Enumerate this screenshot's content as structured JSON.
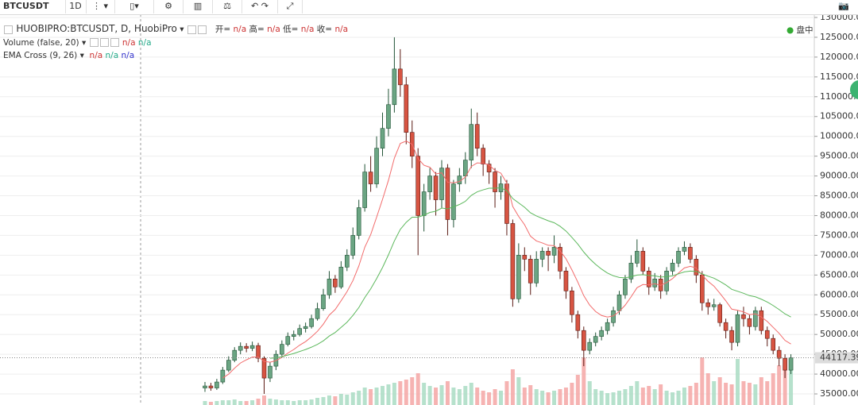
{
  "chart_data": {
    "type": "candlestick",
    "symbol": "BTCUSDT",
    "interval": "1D",
    "title": "HUOBIPRO:BTCUSDT, D, HuobiPro",
    "ohlc_labels": [
      "开=",
      "高=",
      "低=",
      "收="
    ],
    "na": "n/a",
    "volume_title": "Volume (false, 20)",
    "ema_title": "EMA Cross (9, 26)",
    "market_status": "盘中",
    "up_color": "#6ba583",
    "down_color": "#d75442",
    "volume_up_color": "#a9dcc3",
    "volume_down_color": "#f5a6a4",
    "ylim": [
      32200,
      130800
    ],
    "yticks": [
      {
        "value": 35000,
        "label": "35000.00"
      },
      {
        "value": 40000,
        "label": "40000.00"
      },
      {
        "value": 45000,
        "label": "45000.00"
      },
      {
        "value": 50000,
        "label": "50000.00"
      },
      {
        "value": 55000,
        "label": "55000.00"
      },
      {
        "value": 60000,
        "label": "60000.00"
      },
      {
        "value": 65000,
        "label": "65000.00"
      },
      {
        "value": 70000,
        "label": "70000.00"
      },
      {
        "value": 75000,
        "label": "75000.00"
      },
      {
        "value": 80000,
        "label": "80000.00"
      },
      {
        "value": 85000,
        "label": "85000.00"
      },
      {
        "value": 90000,
        "label": "90000.00"
      },
      {
        "value": 95000,
        "label": "95000.00"
      },
      {
        "value": 100000,
        "label": "100000.00"
      },
      {
        "value": 105000,
        "label": "105000.00"
      },
      {
        "value": 110000,
        "label": "110000.00"
      },
      {
        "value": 115000,
        "label": "115000.00"
      },
      {
        "value": 120000,
        "label": "120000.00"
      },
      {
        "value": 125000,
        "label": "125000.00"
      },
      {
        "value": 130000,
        "label": "130000.00"
      }
    ],
    "grid": true,
    "last_price": 44117.39,
    "open": [
      36500,
      37000,
      36500,
      38000,
      41000,
      43500,
      46000,
      47000,
      46500,
      47200,
      44000,
      39000,
      42000,
      45000,
      47500,
      49500,
      50000,
      51500,
      52000,
      54000,
      56500,
      60000,
      64000,
      62000,
      67000,
      70000,
      75000,
      82000,
      91000,
      88000,
      97000,
      102000,
      108000,
      117000,
      113000,
      101000,
      95000,
      80000,
      86000,
      90000,
      84000,
      92000,
      79000,
      88000,
      90000,
      94000,
      103000,
      97000,
      93000,
      91000,
      86000,
      88000,
      78000,
      59000,
      70000,
      69000,
      63000,
      69000,
      71000,
      70000,
      72000,
      66000,
      61000,
      55000,
      51000,
      46000,
      48000,
      49500,
      51000,
      53000,
      56000,
      60000,
      64000,
      68000,
      71000,
      66000,
      62000,
      64000,
      61000,
      66000,
      68000,
      71000,
      72000,
      69000,
      65000,
      58000,
      57000,
      57500,
      53000,
      51000,
      48000,
      55000,
      54000,
      52000,
      56000,
      51000,
      49000,
      46000,
      44000,
      41000
    ],
    "high": [
      38000,
      37800,
      38800,
      41800,
      44500,
      46800,
      48000,
      47800,
      48200,
      47900,
      44500,
      43000,
      46000,
      48500,
      50500,
      51000,
      52500,
      53000,
      55000,
      58000,
      61500,
      66000,
      65000,
      68500,
      71500,
      77000,
      84000,
      93000,
      95000,
      100000,
      106000,
      112000,
      125000,
      122000,
      115000,
      104000,
      97000,
      88000,
      92000,
      91000,
      94000,
      93000,
      89000,
      92000,
      96000,
      107000,
      106000,
      98000,
      94000,
      92000,
      90000,
      89000,
      79000,
      73000,
      72000,
      70000,
      71000,
      72000,
      72000,
      75000,
      73000,
      67000,
      62000,
      56000,
      52000,
      49000,
      50500,
      52000,
      54000,
      57000,
      61000,
      65000,
      70000,
      74000,
      72000,
      67000,
      65500,
      65000,
      67000,
      69000,
      72000,
      73500,
      73000,
      70000,
      66000,
      59000,
      59000,
      58000,
      54000,
      52000,
      56000,
      57000,
      55000,
      57000,
      57000,
      52000,
      50000,
      47000,
      45000,
      45000
    ],
    "low": [
      35500,
      35800,
      36000,
      37500,
      40500,
      43000,
      45000,
      45500,
      45800,
      43000,
      35000,
      38000,
      41000,
      44500,
      47000,
      48500,
      49500,
      50500,
      51500,
      53500,
      56000,
      59000,
      60500,
      61500,
      66000,
      69000,
      74000,
      81000,
      86000,
      87000,
      95000,
      100000,
      106000,
      110000,
      98000,
      92000,
      70000,
      76000,
      84000,
      80000,
      82000,
      75000,
      77000,
      86000,
      88000,
      92000,
      95000,
      90000,
      88000,
      82000,
      84000,
      75000,
      57000,
      58000,
      66000,
      60000,
      62000,
      67000,
      66000,
      68000,
      64000,
      59000,
      53000,
      49000,
      42000,
      45000,
      47000,
      48500,
      50000,
      52000,
      55000,
      59000,
      63000,
      67000,
      65000,
      60000,
      61000,
      59000,
      60000,
      65000,
      67000,
      70000,
      68000,
      63000,
      56000,
      55000,
      56000,
      52000,
      49000,
      46000,
      47000,
      52000,
      50000,
      51000,
      50000,
      47000,
      45000,
      42000,
      39000,
      40000
    ],
    "close": [
      37000,
      36500,
      38000,
      41000,
      43500,
      46000,
      47000,
      46500,
      47200,
      44000,
      39000,
      42000,
      45000,
      47500,
      49500,
      50000,
      51500,
      52000,
      54000,
      56500,
      60000,
      64000,
      62000,
      67000,
      70000,
      75000,
      82000,
      91000,
      88000,
      97000,
      102000,
      108000,
      117000,
      113000,
      101000,
      95000,
      80000,
      86000,
      90000,
      84000,
      92000,
      79000,
      88000,
      90000,
      94000,
      103000,
      97000,
      93000,
      91000,
      86000,
      88000,
      78000,
      59000,
      70000,
      69000,
      63000,
      69000,
      71000,
      70000,
      72000,
      66000,
      61000,
      55000,
      51000,
      46000,
      48000,
      49500,
      51000,
      53000,
      56000,
      60000,
      64000,
      68000,
      71000,
      66000,
      62000,
      64000,
      61000,
      66000,
      68000,
      71000,
      72000,
      69000,
      65000,
      58000,
      57000,
      57500,
      53000,
      51000,
      48000,
      55000,
      54000,
      52000,
      56000,
      51000,
      49000,
      46000,
      44000,
      41000,
      44117.39
    ],
    "volume": [
      5,
      4,
      5,
      6,
      6,
      7,
      5,
      5,
      6,
      8,
      12,
      8,
      7,
      6,
      6,
      5,
      6,
      6,
      7,
      9,
      10,
      12,
      11,
      14,
      13,
      16,
      18,
      22,
      20,
      22,
      24,
      26,
      28,
      30,
      32,
      35,
      40,
      28,
      24,
      22,
      25,
      30,
      22,
      20,
      24,
      28,
      22,
      18,
      16,
      20,
      18,
      30,
      45,
      35,
      22,
      25,
      20,
      18,
      16,
      18,
      20,
      22,
      28,
      38,
      60,
      30,
      20,
      18,
      15,
      16,
      18,
      20,
      24,
      30,
      22,
      24,
      20,
      26,
      18,
      16,
      18,
      22,
      24,
      28,
      60,
      40,
      30,
      35,
      28,
      26,
      58,
      30,
      28,
      26,
      35,
      30,
      40,
      50,
      58,
      45
    ],
    "volume_lim": [
      0,
      150
    ],
    "ema_lines": [
      {
        "color": "#f26b6b",
        "values": [
          null,
          null,
          null,
          39000,
          40000,
          41500,
          42800,
          43600,
          44300,
          44300,
          43200,
          43000,
          43400,
          44200,
          45300,
          46200,
          47300,
          48200,
          49400,
          50800,
          52600,
          54900,
          56300,
          58500,
          60800,
          63600,
          67300,
          72000,
          75200,
          79600,
          84100,
          88900,
          94500,
          98200,
          98800,
          98000,
          94400,
          92700,
          92200,
          90500,
          90800,
          88400,
          88300,
          88600,
          89700,
          92400,
          93300,
          93200,
          92800,
          91400,
          90700,
          88200,
          82300,
          79800,
          77700,
          74800,
          73600,
          73100,
          72500,
          72400,
          71100,
          69100,
          66300,
          63200,
          59800,
          57400,
          55800,
          54800,
          54400,
          54700,
          55800,
          57400,
          59500,
          61800,
          62600,
          62500,
          62800,
          62400,
          63100,
          64100,
          65500,
          66800,
          67200,
          66800,
          65000,
          63400,
          62200,
          60400,
          58500,
          56400,
          56100,
          55700,
          55000,
          55200,
          54400,
          53300,
          51800,
          50300,
          48500,
          47600
        ]
      },
      {
        "color": "#5cb85c",
        "values": [
          null,
          null,
          null,
          null,
          null,
          null,
          null,
          null,
          null,
          null,
          null,
          44000,
          44100,
          44400,
          44800,
          45200,
          45700,
          46200,
          46800,
          47500,
          48400,
          49600,
          50500,
          51800,
          53100,
          54800,
          56800,
          59300,
          61500,
          64100,
          66900,
          70100,
          73600,
          76500,
          78300,
          79600,
          79600,
          80100,
          80800,
          81100,
          81900,
          81700,
          82200,
          82800,
          83600,
          85100,
          86000,
          86500,
          86900,
          86900,
          87000,
          86300,
          84300,
          83200,
          82100,
          80700,
          79900,
          79300,
          78700,
          78200,
          77300,
          76100,
          74500,
          72800,
          70800,
          69100,
          67700,
          66500,
          65500,
          64800,
          64400,
          64300,
          64600,
          65000,
          65100,
          64900,
          64800,
          64500,
          64600,
          64800,
          65300,
          65800,
          66000,
          65900,
          65300,
          64700,
          64200,
          63400,
          62500,
          61400,
          60900,
          60400,
          59800,
          59500,
          58900,
          58200,
          57300,
          56300,
          55200,
          54400
        ]
      }
    ]
  }
}
